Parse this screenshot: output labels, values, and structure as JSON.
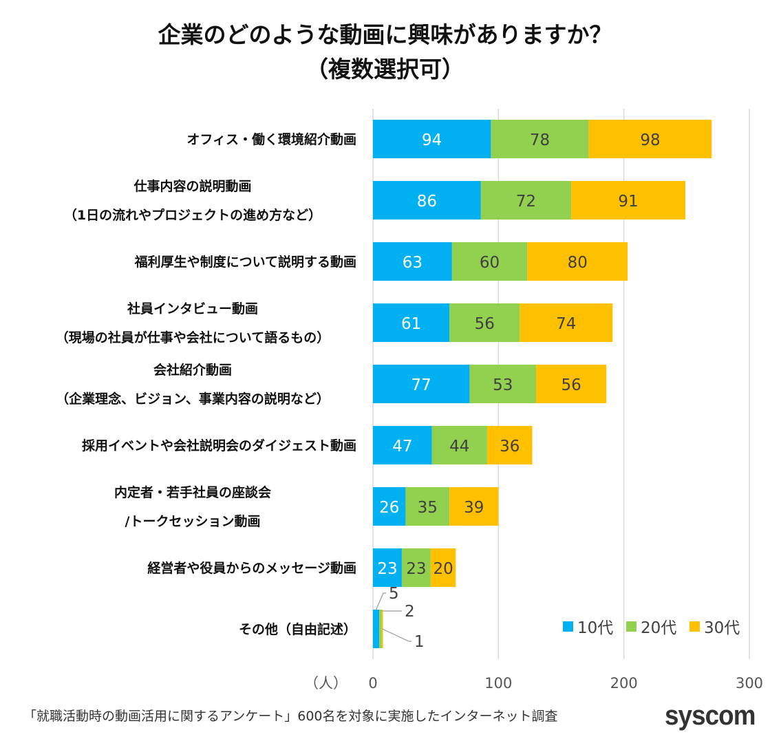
{
  "chart_data": {
    "type": "bar",
    "orientation": "horizontal",
    "stacked": true,
    "title": "企業のどのような動画に興味がありますか？",
    "subtitle": "（複数選択可）",
    "xlabel": "（人）",
    "xlim": [
      0,
      300
    ],
    "xticks": [
      "0",
      "100",
      "200",
      "300"
    ],
    "grid": true,
    "legend_position": "bottom-right",
    "categories": [
      [
        "オフィス・働く環境紹介動画"
      ],
      [
        "仕事内容の説明動画",
        "（1日の流れやプロジェクトの進め方など）"
      ],
      [
        "福利厚生や制度について説明する動画"
      ],
      [
        "社員インタビュー動画",
        "（現場の社員が仕事や会社について語るもの）"
      ],
      [
        "会社紹介動画",
        "（企業理念、ビジョン、事業内容の説明など）"
      ],
      [
        "採用イベントや会社説明会のダイジェスト動画"
      ],
      [
        "内定者・若手社員の座談会",
        "/トークセッション動画"
      ],
      [
        "経営者や役員からのメッセージ動画"
      ],
      [
        "その他（自由記述）"
      ]
    ],
    "series": [
      {
        "name": "10代",
        "color": "#00B0F0",
        "values": [
          94,
          86,
          63,
          61,
          77,
          47,
          26,
          23,
          5
        ]
      },
      {
        "name": "20代",
        "color": "#92D050",
        "values": [
          78,
          72,
          60,
          56,
          53,
          44,
          35,
          23,
          2
        ]
      },
      {
        "name": "30代",
        "color": "#FFC000",
        "values": [
          98,
          91,
          80,
          74,
          56,
          36,
          39,
          20,
          1
        ]
      }
    ]
  },
  "footnote": "「就職活動時の動画活用に関するアンケート」600名を対象に実施したインターネット調査",
  "logo": "syscom"
}
